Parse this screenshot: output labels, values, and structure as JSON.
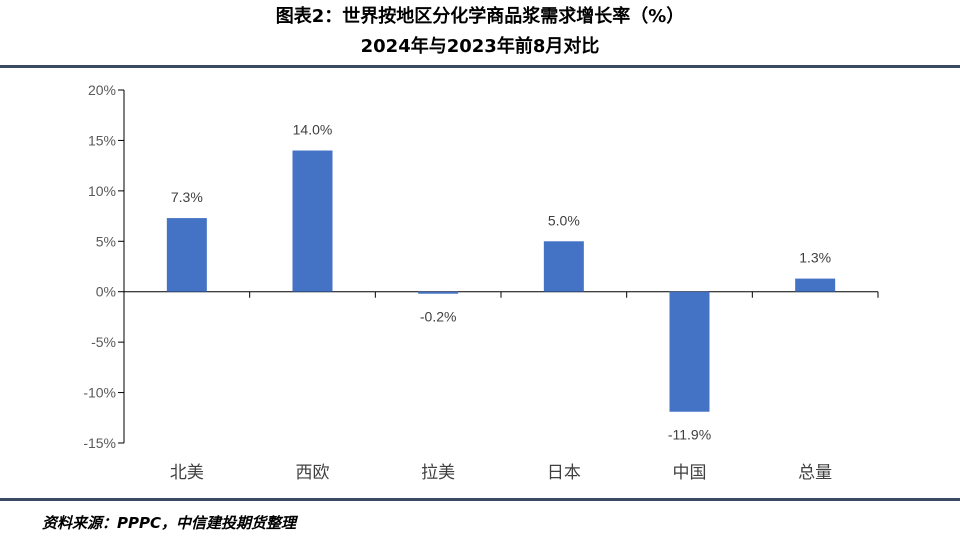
{
  "title_line1": "图表2：世界按地区分化学商品浆需求增长率（%）",
  "title_line2": "2024年与2023年前8月对比",
  "source": "资料来源：PPPC，中信建投期货整理",
  "colors": {
    "bar": "#4472c4",
    "rule": "#3a4a63",
    "axis": "#000000"
  },
  "chart_data": {
    "type": "bar",
    "categories": [
      "北美",
      "西欧",
      "拉美",
      "日本",
      "中国",
      "总量"
    ],
    "values": [
      7.3,
      14.0,
      -0.2,
      5.0,
      -11.9,
      1.3
    ],
    "data_labels": [
      "7.3%",
      "14.0%",
      "-0.2%",
      "5.0%",
      "-11.9%",
      "1.3%"
    ],
    "yticks": [
      20,
      15,
      10,
      5,
      0,
      -5,
      -10,
      -15
    ],
    "ytick_labels": [
      "20%",
      "15%",
      "10%",
      "5%",
      "0%",
      "-5%",
      "-10%",
      "-15%"
    ],
    "ylim": [
      -15,
      20
    ],
    "grid": false,
    "legend": "none"
  }
}
